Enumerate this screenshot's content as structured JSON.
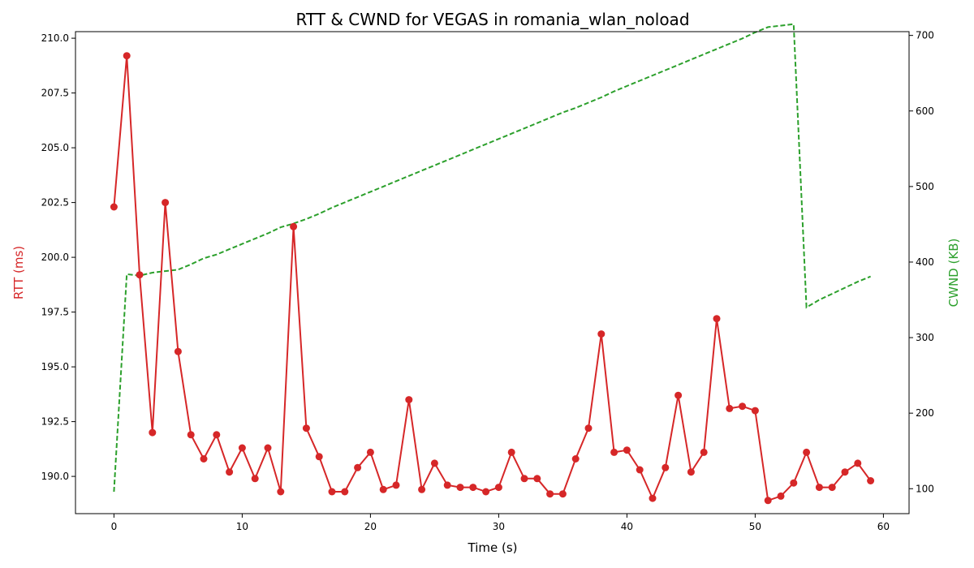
{
  "chart_data": {
    "type": "line",
    "title": "RTT & CWND for VEGAS in romania_wlan_noload",
    "xlabel": "Time (s)",
    "ylabel_left": "RTT (ms)",
    "ylabel_right": "CWND (KB)",
    "xlim": [
      -3,
      62
    ],
    "ylim_left": [
      188.3,
      210.3
    ],
    "ylim_right": [
      67,
      705
    ],
    "xticks": [
      0,
      10,
      20,
      30,
      40,
      50,
      60
    ],
    "yticks_left": [
      "190.0",
      "192.5",
      "195.0",
      "197.5",
      "200.0",
      "202.5",
      "205.0",
      "207.5",
      "210.0"
    ],
    "yticks_right": [
      100,
      200,
      300,
      400,
      500,
      600,
      700
    ],
    "colors": {
      "rtt": "#d62728",
      "cwnd": "#2ca02c"
    },
    "series": [
      {
        "axis": "left",
        "style": "solid-markers",
        "x": [
          0,
          1,
          2,
          3,
          4,
          5,
          6,
          7,
          8,
          9,
          10,
          11,
          12,
          13,
          14,
          15,
          16,
          17,
          18,
          19,
          20,
          21,
          22,
          23,
          24,
          25,
          26,
          27,
          28,
          29,
          30,
          31,
          32,
          33,
          34,
          35,
          36,
          37,
          38,
          39,
          40,
          41,
          42,
          43,
          44,
          45,
          46,
          47,
          48,
          49,
          50,
          51,
          52,
          53,
          54,
          55,
          56,
          57,
          58,
          59
        ],
        "values": [
          202.3,
          209.2,
          199.2,
          192.0,
          202.5,
          195.7,
          191.9,
          190.8,
          191.9,
          190.2,
          191.3,
          189.9,
          191.3,
          189.3,
          201.4,
          192.2,
          190.9,
          189.3,
          189.3,
          190.4,
          191.1,
          189.4,
          189.6,
          193.5,
          189.4,
          190.6,
          189.6,
          189.5,
          189.5,
          189.3,
          189.5,
          191.1,
          189.9,
          189.9,
          189.2,
          189.2,
          190.8,
          192.2,
          196.5,
          191.1,
          191.2,
          190.3,
          189.0,
          190.4,
          193.7,
          190.2,
          191.1,
          197.2,
          193.1,
          193.2,
          193.0,
          188.9,
          189.1,
          189.7,
          191.1,
          189.5,
          189.5,
          190.2,
          190.6,
          189.8
        ]
      },
      {
        "axis": "right",
        "style": "dashed",
        "x": [
          0,
          1,
          2,
          3,
          4,
          5,
          6,
          7,
          8,
          9,
          10,
          11,
          12,
          13,
          14,
          15,
          16,
          17,
          18,
          19,
          20,
          21,
          22,
          23,
          24,
          25,
          26,
          27,
          28,
          29,
          30,
          31,
          32,
          33,
          34,
          35,
          36,
          37,
          38,
          39,
          40,
          41,
          42,
          43,
          44,
          45,
          46,
          47,
          48,
          49,
          50,
          51,
          52,
          53,
          54,
          55,
          56,
          57,
          58,
          59
        ],
        "values": [
          96,
          384,
          382,
          386,
          388,
          390,
          397,
          405,
          410,
          417,
          424,
          431,
          438,
          446,
          451,
          457,
          464,
          472,
          479,
          486,
          493,
          500,
          507,
          514,
          521,
          528,
          535,
          542,
          549,
          556,
          563,
          570,
          577,
          584,
          591,
          598,
          604,
          611,
          618,
          626,
          633,
          640,
          647,
          654,
          661,
          668,
          675,
          682,
          689,
          696,
          704,
          711,
          713,
          715,
          340,
          350,
          358,
          366,
          374,
          381
        ]
      }
    ]
  }
}
